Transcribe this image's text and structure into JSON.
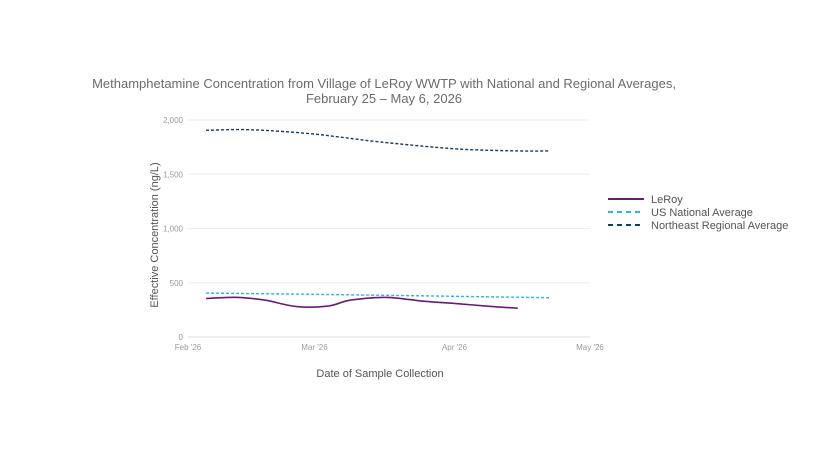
{
  "chart_data": {
    "type": "line",
    "title": "Methamphetamine Concentration from Village of LeRoy WWTP with National and Regional Averages,",
    "subtitle": "February 25 – May 6, 2026",
    "xlabel": "Date of Sample Collection",
    "ylabel": "Effective Concentration (ng/L)",
    "xlim": [
      "2026-02-01",
      "2026-05-01"
    ],
    "ylim": [
      0,
      2000
    ],
    "x_ticks": [
      "2026-02-01",
      "2026-03-01",
      "2026-04-01",
      "2026-05-01"
    ],
    "x_tick_labels": [
      "Feb '26",
      "Mar '26",
      "Apr '26",
      "May '26"
    ],
    "y_ticks": [
      0,
      500,
      1000,
      1500,
      2000
    ],
    "y_tick_labels": [
      "0",
      "500",
      "1,000",
      "1,500",
      "2,000"
    ],
    "grid": true,
    "legend_position": "right",
    "series": [
      {
        "name": "LeRoy",
        "color": "#6a1b7a",
        "dash": "solid",
        "x": [
          "2026-02-05",
          "2026-02-12",
          "2026-02-18",
          "2026-02-25",
          "2026-03-04",
          "2026-03-09",
          "2026-03-17",
          "2026-03-25",
          "2026-04-01",
          "2026-04-08",
          "2026-04-15"
        ],
        "y": [
          355,
          365,
          340,
          280,
          285,
          340,
          365,
          330,
          310,
          285,
          265
        ]
      },
      {
        "name": "US National Average",
        "color": "#29b6e0",
        "dash": "dashed",
        "x": [
          "2026-02-05",
          "2026-02-25",
          "2026-03-15",
          "2026-04-01",
          "2026-04-22"
        ],
        "y": [
          405,
          395,
          385,
          375,
          362
        ]
      },
      {
        "name": "Northeast Regional Average",
        "color": "#0f3d63",
        "dash": "dashed",
        "x": [
          "2026-02-05",
          "2026-02-15",
          "2026-03-01",
          "2026-03-15",
          "2026-04-01",
          "2026-04-15",
          "2026-04-22"
        ],
        "y": [
          1905,
          1910,
          1870,
          1800,
          1735,
          1715,
          1715
        ]
      }
    ]
  }
}
